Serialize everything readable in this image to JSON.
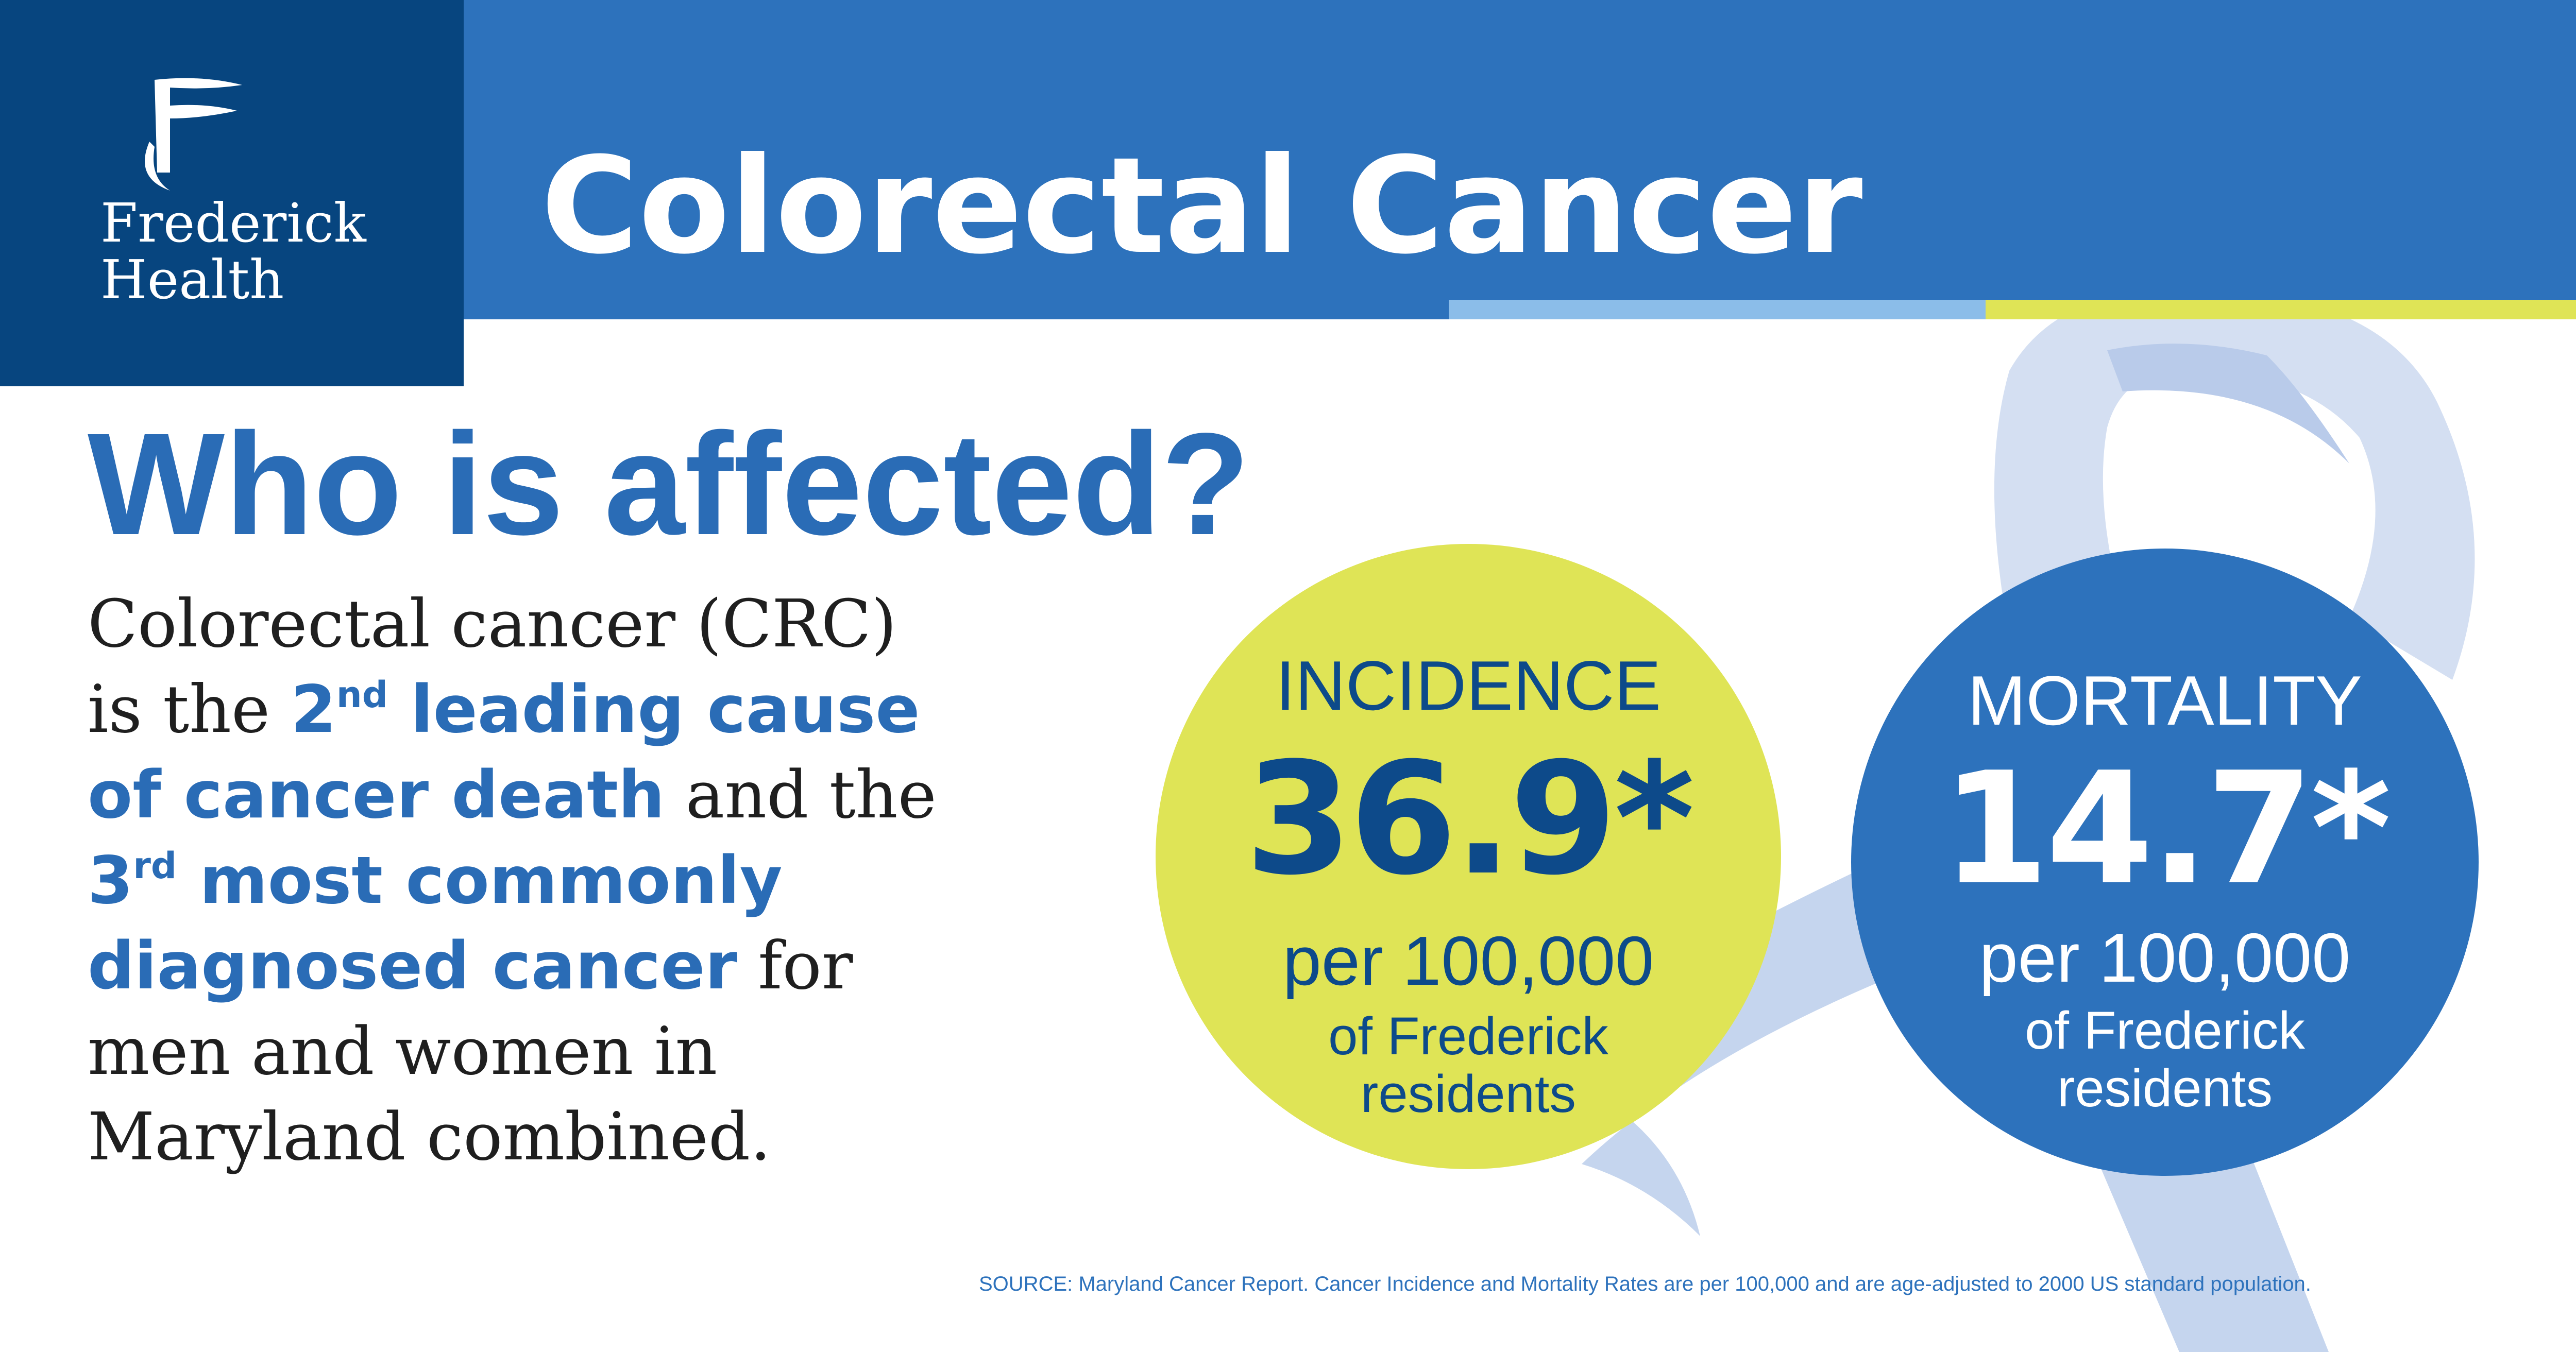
{
  "logo": {
    "brand_line1": "Frederick",
    "brand_line2": "Health",
    "icon": "flag-icon"
  },
  "header": {
    "title": "Colorectal Cancer"
  },
  "main": {
    "subtitle": "Who is affected?",
    "body": {
      "line1": "Colorectal cancer (CRC)",
      "line2_prefix": "is the ",
      "rank1_num": "2",
      "rank1_sup": "nd",
      "rank1_text": " leading cause",
      "line3_highlight": "of cancer death",
      "line3_suffix": " and the",
      "rank2_num": "3",
      "rank2_sup": "rd",
      "rank2_text": " most commonly",
      "line5_highlight": "diagnosed cancer",
      "line5_suffix": " for",
      "line6": "men and women in",
      "line7": "Maryland combined."
    }
  },
  "stats": {
    "incidence": {
      "label": "INCIDENCE",
      "value": "36.9*",
      "per": "per 100,000",
      "of_line1": "of Frederick",
      "of_line2": "residents"
    },
    "mortality": {
      "label": "MORTALITY",
      "value": "14.7*",
      "per": "per 100,000",
      "of_line1": "of Frederick",
      "of_line2": "residents"
    }
  },
  "footer": {
    "source": "SOURCE: Maryland Cancer Report. Cancer Incidence and Mortality Rates are per 100,000 and are age-adjusted to 2000 US standard population."
  },
  "colors": {
    "banner": "#2d72bc",
    "logo_bg": "#07457f",
    "accent_blue": "#2a6cb6",
    "accent_yellow": "#dfe456",
    "stripe_light_blue": "#8bbde9",
    "ribbon": "#c8d6ef"
  }
}
